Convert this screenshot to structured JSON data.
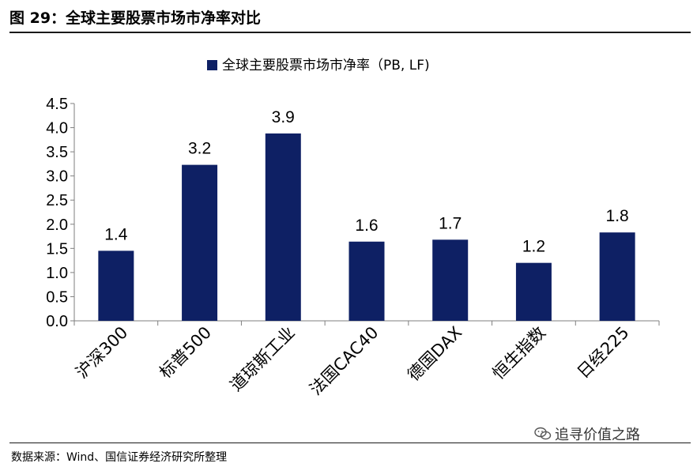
{
  "header": {
    "title": "图 29：全球主要股票市场市净率对比"
  },
  "chart_data": {
    "type": "bar",
    "title": "",
    "categories": [
      "沪深300",
      "标普500",
      "道琼斯工业",
      "法国CAC40",
      "德国DAX",
      "恒生指数",
      "日经225"
    ],
    "series": [
      {
        "name": "全球主要股票市场市净率（PB, LF)",
        "values": [
          1.4,
          3.2,
          3.9,
          1.6,
          1.7,
          1.2,
          1.8
        ]
      }
    ],
    "data_labels": [
      "1.4",
      "3.2",
      "3.9",
      "1.6",
      "1.7",
      "1.2",
      "1.8"
    ],
    "bar_values_read": [
      1.45,
      3.23,
      3.88,
      1.64,
      1.68,
      1.2,
      1.83
    ],
    "ylim": [
      0,
      4.5
    ],
    "yticks": [
      "0.0",
      "0.5",
      "1.0",
      "1.5",
      "2.0",
      "2.5",
      "3.0",
      "3.5",
      "4.0",
      "4.5"
    ],
    "xlabel": "",
    "ylabel": "",
    "grid": false,
    "legend_position": "top-center",
    "bar_color": "#0e2064",
    "axis_color": "#7f7f7f"
  },
  "footer": {
    "source": "数据来源：Wind、国信证券经济研究所整理",
    "watermark": "追寻价值之路",
    "watermark_icon": "wechat-icon"
  }
}
